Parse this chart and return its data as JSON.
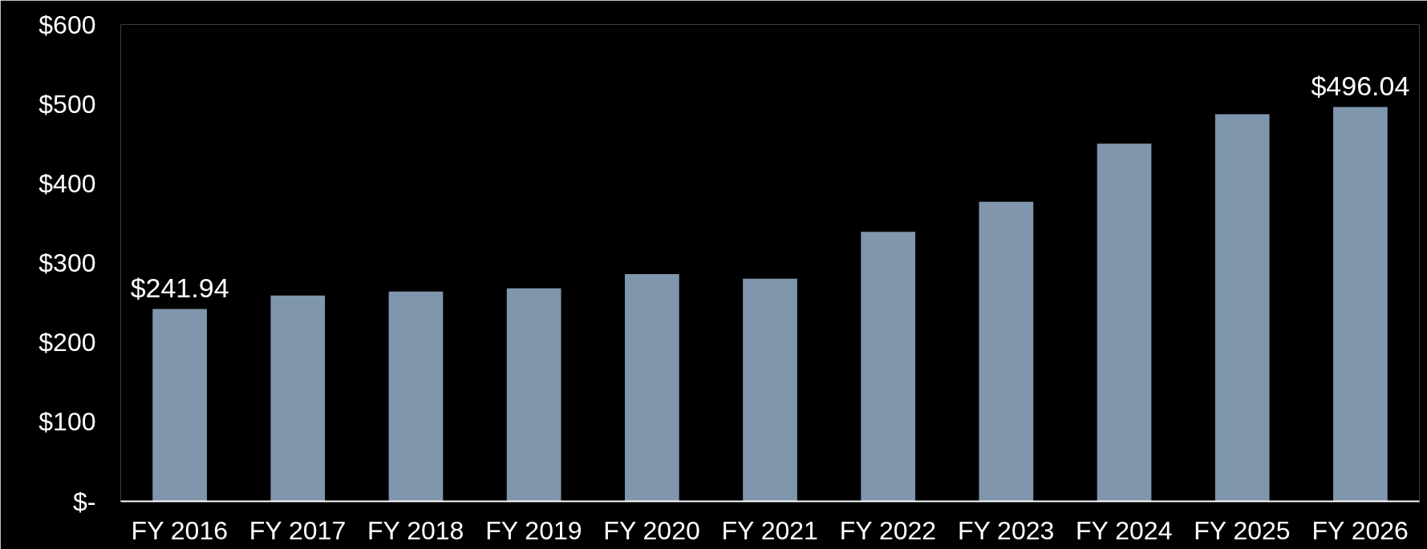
{
  "chart_data": {
    "type": "bar",
    "categories": [
      "FY 2016",
      "FY 2017",
      "FY 2018",
      "FY 2019",
      "FY 2020",
      "FY 2021",
      "FY 2022",
      "FY 2023",
      "FY 2024",
      "FY 2025",
      "FY 2026"
    ],
    "values": [
      241.94,
      259,
      264,
      268,
      286,
      280,
      339,
      377,
      450,
      487,
      496.04
    ],
    "value_labels": [
      "$241.94",
      null,
      null,
      null,
      null,
      null,
      null,
      null,
      null,
      null,
      "$496.04"
    ],
    "color": "#7f96ad",
    "ylim": [
      0,
      600
    ],
    "yticks": [
      {
        "value": 0,
        "label": "$-"
      },
      {
        "value": 100,
        "label": "$100"
      },
      {
        "value": 200,
        "label": "$200"
      },
      {
        "value": 300,
        "label": "$300"
      },
      {
        "value": 400,
        "label": "$400"
      },
      {
        "value": 500,
        "label": "$500"
      },
      {
        "value": 600,
        "label": "$600"
      }
    ],
    "grid": false
  }
}
